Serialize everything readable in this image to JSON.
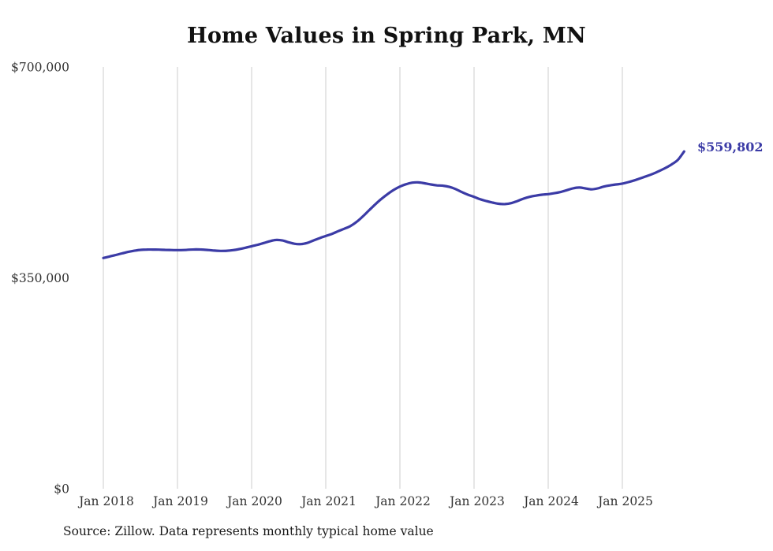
{
  "title": "Home Values in Spring Park, MN",
  "source_note": "Source: Zillow. Data represents monthly typical home value",
  "chart_data": {
    "type": "line",
    "title": "Home Values in Spring Park, MN",
    "x_start": "Jan 2018",
    "x_end": "Nov 2025",
    "frequency": "monthly",
    "x_tick_labels": [
      "Jan 2018",
      "Jan 2019",
      "Jan 2020",
      "Jan 2021",
      "Jan 2022",
      "Jan 2023",
      "Jan 2024",
      "Jan 2025"
    ],
    "y_ticks": [
      0,
      350000,
      700000
    ],
    "y_tick_labels": [
      "$0",
      "$350,000",
      "$700,000"
    ],
    "ylim": [
      0,
      700000
    ],
    "grid": "vertical-only",
    "legend": "none",
    "line_color": "#3b3ba6",
    "grid_color": "#cccccc",
    "tick_label_color": "#333333",
    "end_label": "$559,802",
    "end_value": 559802,
    "values": [
      383000,
      385500,
      388000,
      390500,
      393000,
      395000,
      396500,
      397000,
      397000,
      396800,
      396500,
      396200,
      396000,
      396200,
      396800,
      397200,
      397000,
      396200,
      395300,
      394800,
      395000,
      396000,
      397800,
      400000,
      402500,
      405000,
      408000,
      411000,
      413000,
      412000,
      409000,
      406500,
      406000,
      408000,
      412000,
      416000,
      419500,
      423000,
      427500,
      431500,
      436000,
      443000,
      452000,
      462000,
      472000,
      481000,
      489000,
      496000,
      501500,
      505500,
      508000,
      508500,
      507000,
      505000,
      503500,
      503000,
      501000,
      497500,
      492500,
      488000,
      484500,
      480500,
      477500,
      475000,
      473000,
      472500,
      474000,
      477500,
      481500,
      484500,
      486500,
      488000,
      489000,
      490500,
      492500,
      495500,
      498500,
      500000,
      498500,
      497000,
      498500,
      501500,
      503500,
      505000,
      506500,
      509000,
      512000,
      515500,
      519000,
      523000,
      527500,
      532500,
      538500,
      546000,
      559802
    ]
  }
}
